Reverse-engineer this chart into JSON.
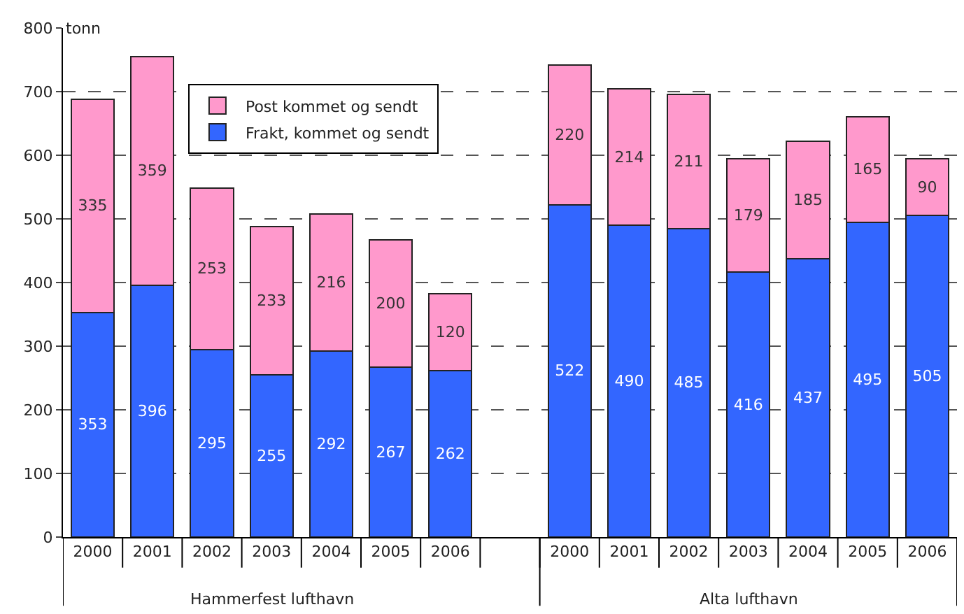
{
  "chart_data": {
    "type": "bar",
    "stacked": true,
    "ylabel": "tonn",
    "categories": [
      "2000",
      "2001",
      "2002",
      "2003",
      "2004",
      "2005",
      "2006",
      null,
      "2000",
      "2001",
      "2002",
      "2003",
      "2004",
      "2005",
      "2006"
    ],
    "series": [
      {
        "name": "Frakt, kommet og sendt",
        "color": "#3366ff",
        "values": [
          353,
          396,
          295,
          255,
          292,
          267,
          262,
          null,
          522,
          490,
          485,
          416,
          437,
          495,
          505
        ]
      },
      {
        "name": "Post kommet og sendt",
        "color": "#ff99cc",
        "values": [
          335,
          359,
          253,
          233,
          216,
          200,
          120,
          null,
          220,
          214,
          211,
          179,
          185,
          165,
          90
        ]
      }
    ],
    "ylim": [
      0,
      800
    ],
    "yticks": [
      0,
      100,
      200,
      300,
      400,
      500,
      600,
      700,
      800
    ],
    "grid": "y",
    "legend": "top left",
    "data_labels": true,
    "annotations": [
      "Hammerfest lufthavn",
      "Alta lufthavn"
    ]
  }
}
